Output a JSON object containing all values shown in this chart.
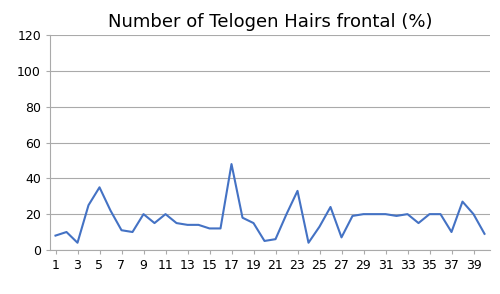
{
  "title": "Number of Telogen Hairs frontal (%)",
  "x_values": [
    1,
    2,
    3,
    4,
    5,
    6,
    7,
    8,
    9,
    10,
    11,
    12,
    13,
    14,
    15,
    16,
    17,
    18,
    19,
    20,
    21,
    22,
    23,
    24,
    25,
    26,
    27,
    28,
    29,
    30,
    31,
    32,
    33,
    34,
    35,
    36,
    37,
    38,
    39,
    40
  ],
  "y_values": [
    8,
    10,
    4,
    25,
    35,
    22,
    11,
    10,
    20,
    15,
    20,
    15,
    14,
    14,
    12,
    12,
    48,
    18,
    15,
    5,
    6,
    20,
    33,
    4,
    13,
    24,
    7,
    19,
    20,
    20,
    20,
    19,
    20,
    15,
    20,
    20,
    10,
    27,
    20,
    9
  ],
  "line_color": "#4472C4",
  "ylim": [
    0,
    120
  ],
  "yticks": [
    0,
    20,
    40,
    60,
    80,
    100,
    120
  ],
  "xticks": [
    1,
    3,
    5,
    7,
    9,
    11,
    13,
    15,
    17,
    19,
    21,
    23,
    25,
    27,
    29,
    31,
    33,
    35,
    37,
    39
  ],
  "grid_color": "#AAAAAA",
  "title_fontsize": 13,
  "tick_fontsize": 9,
  "line_width": 1.5,
  "bg_color": "#FFFFFF",
  "xlim": [
    0.5,
    40.5
  ]
}
